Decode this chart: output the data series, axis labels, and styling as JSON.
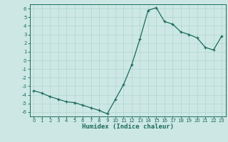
{
  "x": [
    0,
    1,
    2,
    3,
    4,
    5,
    6,
    7,
    8,
    9,
    10,
    11,
    12,
    13,
    14,
    15,
    16,
    17,
    18,
    19,
    20,
    21,
    22,
    23
  ],
  "y": [
    -3.5,
    -3.8,
    -4.2,
    -4.5,
    -4.8,
    -4.9,
    -5.2,
    -5.5,
    -5.8,
    -6.2,
    -4.5,
    -2.8,
    -0.5,
    2.5,
    5.8,
    6.1,
    4.5,
    4.2,
    3.3,
    3.0,
    2.6,
    1.5,
    1.2,
    2.8
  ],
  "xlim": [
    -0.5,
    23.5
  ],
  "ylim": [
    -6.5,
    6.5
  ],
  "yticks": [
    -6,
    -5,
    -4,
    -3,
    -2,
    -1,
    0,
    1,
    2,
    3,
    4,
    5,
    6
  ],
  "xticks": [
    0,
    1,
    2,
    3,
    4,
    5,
    6,
    7,
    8,
    9,
    10,
    11,
    12,
    13,
    14,
    15,
    16,
    17,
    18,
    19,
    20,
    21,
    22,
    23
  ],
  "xlabel": "Humidex (Indice chaleur)",
  "line_color": "#1a6b5a",
  "marker": "+",
  "bg_color": "#cde8e4",
  "grid_color": "#afd4cf",
  "title": ""
}
